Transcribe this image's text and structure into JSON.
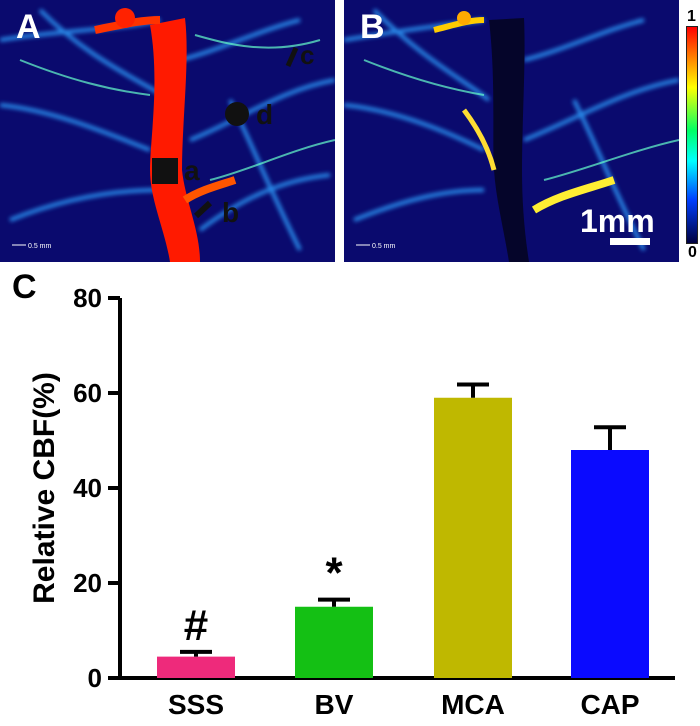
{
  "panels": {
    "a": {
      "label": "A",
      "markers": {
        "a": "a",
        "b": "b",
        "c": "c",
        "d": "d"
      },
      "scale_text": "0.5 mm"
    },
    "b": {
      "label": "B",
      "scale_text": "0.5 mm",
      "scale_bar_label": "1mm"
    },
    "colorbar": {
      "max_label": "1",
      "min_label": "0"
    },
    "c": {
      "label": "C"
    }
  },
  "colors": {
    "SSS": "#ee2a7b",
    "BV": "#14c014",
    "MCA": "#bfb800",
    "CAP": "#0a0aff",
    "background_dark": "#0a0a6e"
  },
  "chart_data": {
    "type": "bar",
    "categories": [
      "SSS",
      "BV",
      "MCA",
      "CAP"
    ],
    "values": [
      4.5,
      15,
      59,
      48
    ],
    "errors": [
      1,
      1.5,
      2.8,
      4.8
    ],
    "annotations": [
      "#",
      "*",
      "",
      ""
    ],
    "ylabel": "Relative CBF(%)",
    "xlabel": "",
    "ylim": [
      0,
      80
    ],
    "yticks": [
      0,
      20,
      40,
      60,
      80
    ],
    "grid": false
  }
}
